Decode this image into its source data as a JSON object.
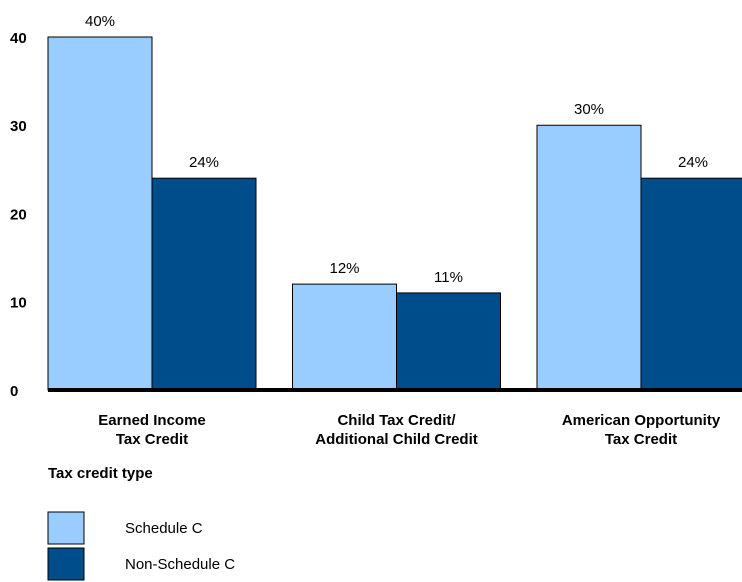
{
  "chart_data": {
    "type": "bar",
    "x_label": "Tax credit type",
    "categories": [
      [
        "Earned Income",
        "Tax Credit"
      ],
      [
        "Child Tax Credit/",
        "Additional Child Credit"
      ],
      [
        "American Opportunity",
        "Tax Credit"
      ]
    ],
    "series": [
      {
        "name": "Schedule C",
        "color": "#99ccff",
        "values": [
          40,
          12,
          30
        ],
        "value_labels": [
          "40%",
          "12%",
          "30%"
        ]
      },
      {
        "name": "Non-Schedule C",
        "color": "#004d8c",
        "values": [
          24,
          11,
          24
        ],
        "value_labels": [
          "24%",
          "11%",
          "24%"
        ]
      }
    ],
    "ylim": [
      0,
      40
    ],
    "yticks": [
      0,
      10,
      20,
      30,
      40
    ],
    "grid": false
  }
}
